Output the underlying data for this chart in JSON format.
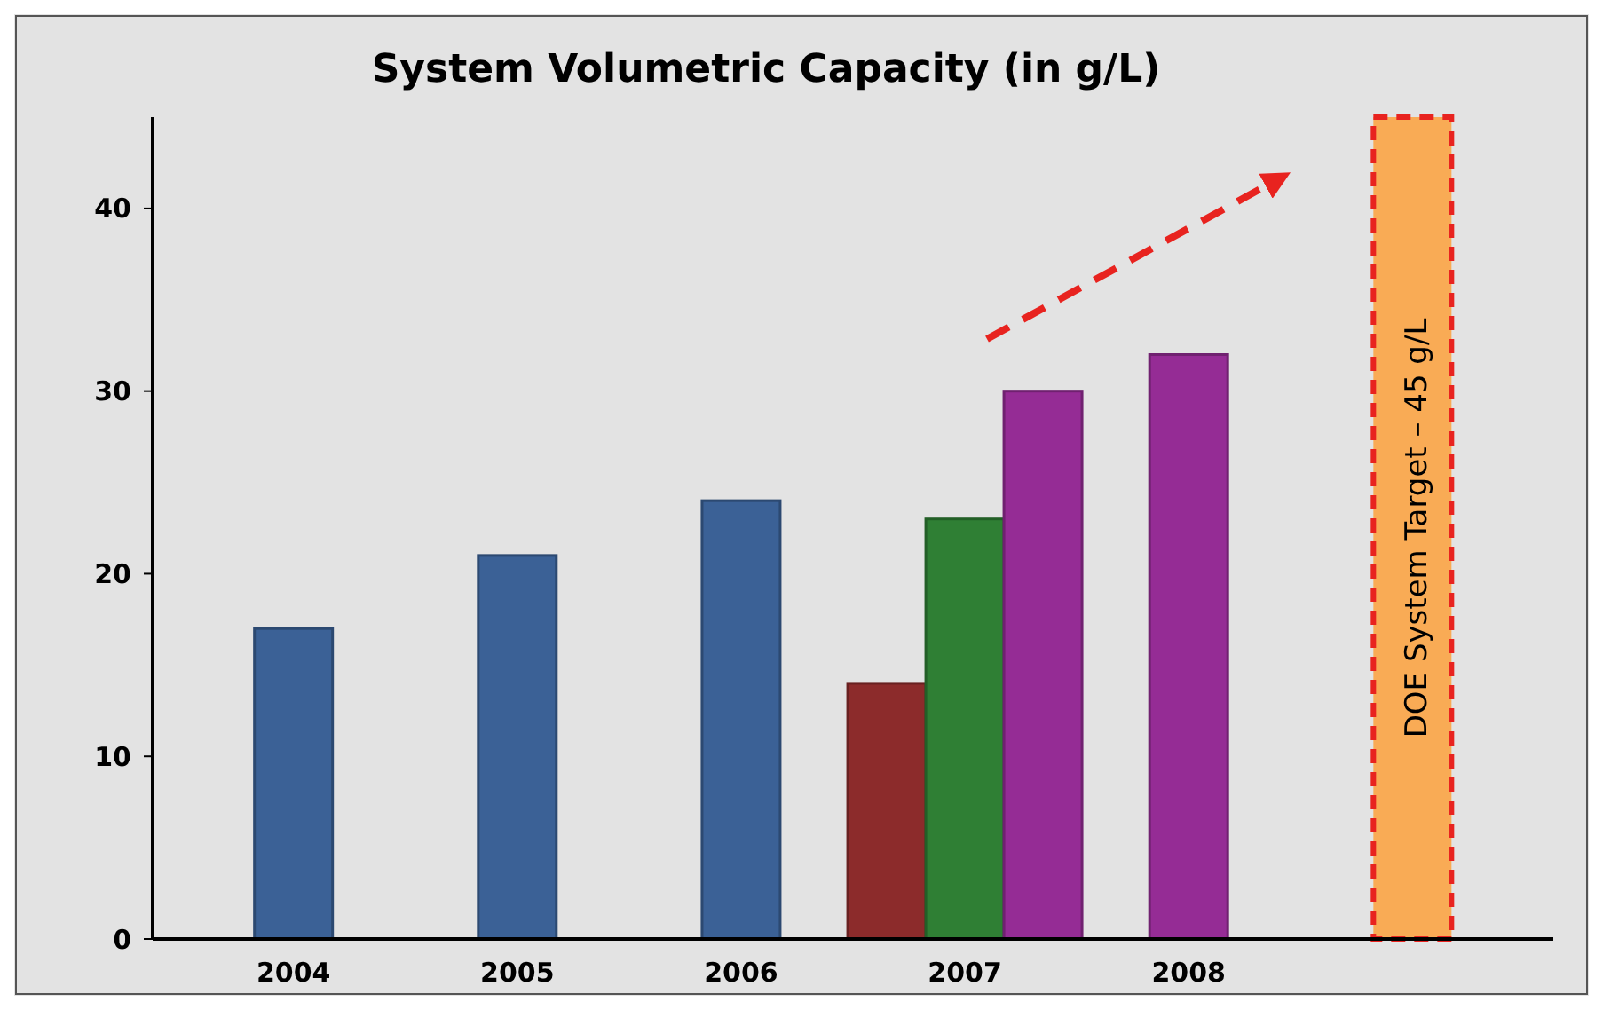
{
  "chart_data": {
    "type": "bar",
    "title": "System Volumetric Capacity (in g/L)",
    "categories": [
      "2004",
      "2005",
      "2006",
      "2007",
      "2008",
      null
    ],
    "series": [
      {
        "color": "#3b6196",
        "values": [
          17,
          21,
          24,
          null,
          null,
          null
        ]
      },
      {
        "color": "#8c2b2b",
        "values": [
          null,
          null,
          null,
          14,
          null,
          null
        ]
      },
      {
        "color": "#2f7f34",
        "values": [
          null,
          null,
          null,
          23,
          null,
          null
        ]
      },
      {
        "color": "#952c95",
        "values": [
          null,
          null,
          null,
          30,
          32,
          null
        ]
      },
      {
        "color": "#f9ab55",
        "values": [
          null,
          null,
          null,
          null,
          null,
          45
        ],
        "line_style": "dashed"
      }
    ],
    "annotations": [
      "DOE System Target – 45 g/L"
    ],
    "ylim": [
      0,
      45
    ],
    "yticks": [
      0,
      10,
      20,
      30,
      40
    ]
  }
}
